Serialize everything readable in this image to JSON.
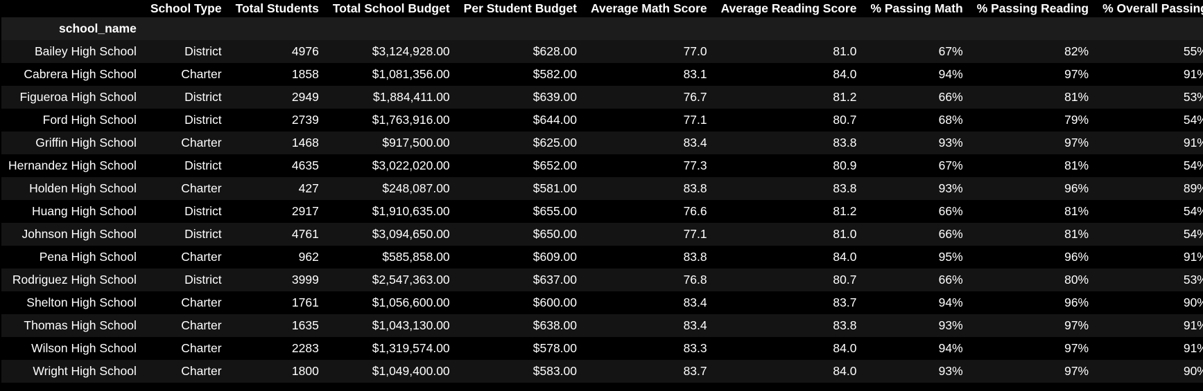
{
  "table": {
    "index_name": "school_name",
    "columns": [
      "School Type",
      "Total Students",
      "Total School Budget",
      "Per Student Budget",
      "Average Math Score",
      "Average Reading Score",
      "% Passing Math",
      "% Passing Reading",
      "% Overall Passing"
    ],
    "rows": [
      {
        "school_name": "Bailey High School",
        "cells": [
          "District",
          "4976",
          "$3,124,928.00",
          "$628.00",
          "77.0",
          "81.0",
          "67%",
          "82%",
          "55%"
        ]
      },
      {
        "school_name": "Cabrera High School",
        "cells": [
          "Charter",
          "1858",
          "$1,081,356.00",
          "$582.00",
          "83.1",
          "84.0",
          "94%",
          "97%",
          "91%"
        ]
      },
      {
        "school_name": "Figueroa High School",
        "cells": [
          "District",
          "2949",
          "$1,884,411.00",
          "$639.00",
          "76.7",
          "81.2",
          "66%",
          "81%",
          "53%"
        ]
      },
      {
        "school_name": "Ford High School",
        "cells": [
          "District",
          "2739",
          "$1,763,916.00",
          "$644.00",
          "77.1",
          "80.7",
          "68%",
          "79%",
          "54%"
        ]
      },
      {
        "school_name": "Griffin High School",
        "cells": [
          "Charter",
          "1468",
          "$917,500.00",
          "$625.00",
          "83.4",
          "83.8",
          "93%",
          "97%",
          "91%"
        ]
      },
      {
        "school_name": "Hernandez High School",
        "cells": [
          "District",
          "4635",
          "$3,022,020.00",
          "$652.00",
          "77.3",
          "80.9",
          "67%",
          "81%",
          "54%"
        ]
      },
      {
        "school_name": "Holden High School",
        "cells": [
          "Charter",
          "427",
          "$248,087.00",
          "$581.00",
          "83.8",
          "83.8",
          "93%",
          "96%",
          "89%"
        ]
      },
      {
        "school_name": "Huang High School",
        "cells": [
          "District",
          "2917",
          "$1,910,635.00",
          "$655.00",
          "76.6",
          "81.2",
          "66%",
          "81%",
          "54%"
        ]
      },
      {
        "school_name": "Johnson High School",
        "cells": [
          "District",
          "4761",
          "$3,094,650.00",
          "$650.00",
          "77.1",
          "81.0",
          "66%",
          "81%",
          "54%"
        ]
      },
      {
        "school_name": "Pena High School",
        "cells": [
          "Charter",
          "962",
          "$585,858.00",
          "$609.00",
          "83.8",
          "84.0",
          "95%",
          "96%",
          "91%"
        ]
      },
      {
        "school_name": "Rodriguez High School",
        "cells": [
          "District",
          "3999",
          "$2,547,363.00",
          "$637.00",
          "76.8",
          "80.7",
          "66%",
          "80%",
          "53%"
        ]
      },
      {
        "school_name": "Shelton High School",
        "cells": [
          "Charter",
          "1761",
          "$1,056,600.00",
          "$600.00",
          "83.4",
          "83.7",
          "94%",
          "96%",
          "90%"
        ]
      },
      {
        "school_name": "Thomas High School",
        "cells": [
          "Charter",
          "1635",
          "$1,043,130.00",
          "$638.00",
          "83.4",
          "83.8",
          "93%",
          "97%",
          "91%"
        ]
      },
      {
        "school_name": "Wilson High School",
        "cells": [
          "Charter",
          "2283",
          "$1,319,574.00",
          "$578.00",
          "83.3",
          "84.0",
          "94%",
          "97%",
          "91%"
        ]
      },
      {
        "school_name": "Wright High School",
        "cells": [
          "Charter",
          "1800",
          "$1,049,400.00",
          "$583.00",
          "83.7",
          "84.0",
          "93%",
          "97%",
          "90%"
        ]
      }
    ]
  }
}
